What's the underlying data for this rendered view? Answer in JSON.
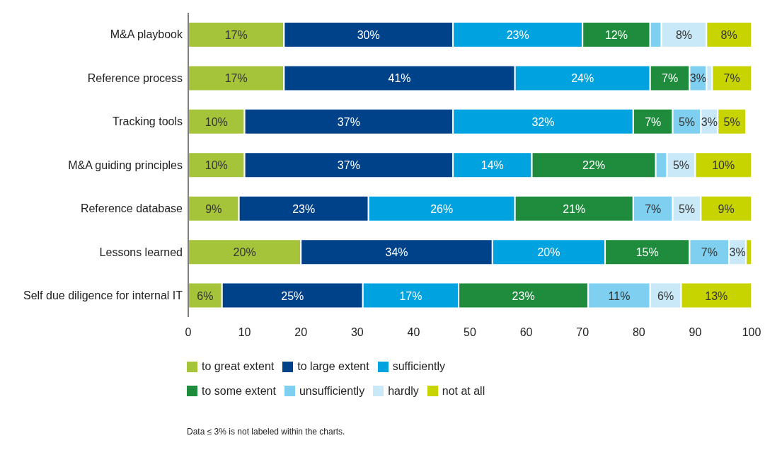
{
  "chart_data": {
    "type": "bar",
    "orientation": "horizontal",
    "stacked": true,
    "legend": "bottom",
    "grid": false,
    "categories": [
      "M&A playbook",
      "Reference process",
      "Tracking tools",
      "M&A guiding principles",
      "Reference database",
      "Lessons learned",
      "Self due diligence for internal IT"
    ],
    "xlim": [
      0,
      100
    ],
    "xticks": [
      0,
      10,
      20,
      30,
      40,
      50,
      60,
      70,
      80,
      90,
      100
    ],
    "series": [
      {
        "name": "to great extent",
        "color": "#a5c43a",
        "values": [
          17,
          17,
          10,
          10,
          9,
          20,
          6
        ],
        "value_labels": [
          "17%",
          "17%",
          "10%",
          "10%",
          "9%",
          "20%",
          "6%"
        ]
      },
      {
        "name": "to large extent",
        "color": "#00428a",
        "values": [
          30,
          41,
          37,
          37,
          23,
          34,
          25
        ],
        "value_labels": [
          "30%",
          "41%",
          "37%",
          "37%",
          "23%",
          "34%",
          "25%"
        ]
      },
      {
        "name": "sufficiently",
        "color": "#00a3e0",
        "values": [
          23,
          24,
          32,
          14,
          26,
          20,
          17
        ],
        "value_labels": [
          "23%",
          "24%",
          "32%",
          "14%",
          "26%",
          "20%",
          "17%"
        ]
      },
      {
        "name": "to some extent",
        "color": "#1e8c3c",
        "values": [
          12,
          7,
          7,
          22,
          21,
          15,
          23
        ],
        "value_labels": [
          "12%",
          "7%",
          "7%",
          "22%",
          "21%",
          "15%",
          "23%"
        ]
      },
      {
        "name": "unsufficiently",
        "color": "#7fd0f0",
        "values": [
          2,
          3,
          5,
          2,
          7,
          7,
          11
        ],
        "value_labels": [
          null,
          "3%",
          "5%",
          null,
          "7%",
          "7%",
          "11%"
        ]
      },
      {
        "name": "hardly",
        "color": "#c9e9f8",
        "values": [
          8,
          1,
          3,
          5,
          5,
          3,
          5.5
        ],
        "value_labels": [
          "8%",
          null,
          "3%",
          "5%",
          "5%",
          "3%",
          "6%"
        ]
      },
      {
        "name": "not at all",
        "color": "#c8d400",
        "values": [
          8,
          7,
          5,
          10,
          9,
          1,
          12.5
        ],
        "value_labels": [
          "8%",
          "7%",
          "5%",
          "10%",
          "9%",
          null,
          "13%"
        ]
      }
    ],
    "annotations": [
      "Data ≤ 3% is not labeled within the charts."
    ]
  }
}
